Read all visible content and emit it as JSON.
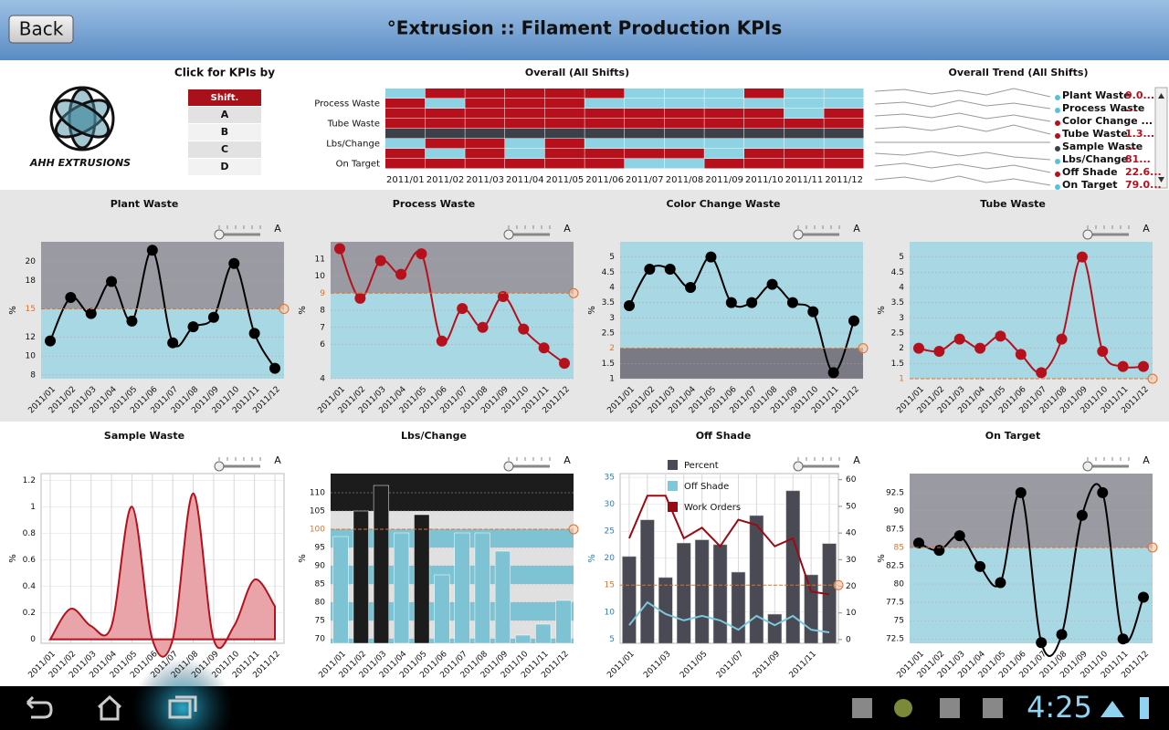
{
  "header": {
    "back": "Back",
    "title": "°Extrusion :: Filament Production KPIs"
  },
  "logo": "AHH EXTRUSIONS",
  "selector": {
    "title": "Click for KPIs by",
    "header": "Shift.",
    "items": [
      "A",
      "B",
      "C",
      "D"
    ]
  },
  "overview": {
    "title": "Overall (All Shifts)",
    "rows": [
      null,
      "Process Waste",
      null,
      "Tube Waste",
      null,
      "Lbs/Change",
      null,
      "On Target"
    ],
    "columns": [
      "2011/01",
      "2011/02",
      "2011/03",
      "2011/04",
      "2011/05",
      "2011/06",
      "2011/07",
      "2011/08",
      "2011/09",
      "2011/10",
      "2011/11",
      "2011/12"
    ],
    "cells": [
      [
        "#8dd3e3",
        "#b5101c",
        "#b5101c",
        "#b5101c",
        "#b5101c",
        "#b5101c",
        "#8dd3e3",
        "#8dd3e3",
        "#8dd3e3",
        "#b5101c",
        "#8dd3e3",
        "#8dd3e3"
      ],
      [
        "#b5101c",
        "#8dd3e3",
        "#b5101c",
        "#b5101c",
        "#b5101c",
        "#8dd3e3",
        "#8dd3e3",
        "#8dd3e3",
        "#8dd3e3",
        "#8dd3e3",
        "#8dd3e3",
        "#8dd3e3"
      ],
      [
        "#b5101c",
        "#b5101c",
        "#b5101c",
        "#b5101c",
        "#b5101c",
        "#b5101c",
        "#b5101c",
        "#b5101c",
        "#b5101c",
        "#b5101c",
        "#8dd3e3",
        "#b5101c"
      ],
      [
        "#b5101c",
        "#b5101c",
        "#b5101c",
        "#b5101c",
        "#b5101c",
        "#b5101c",
        "#b5101c",
        "#b5101c",
        "#b5101c",
        "#b5101c",
        "#b5101c",
        "#b5101c"
      ],
      [
        "#3c4049",
        "#3c4049",
        "#3c4049",
        "#3c4049",
        "#3c4049",
        "#3c4049",
        "#3c4049",
        "#3c4049",
        "#3c4049",
        "#3c4049",
        "#3c4049",
        "#3c4049"
      ],
      [
        "#8dd3e3",
        "#b5101c",
        "#b5101c",
        "#8dd3e3",
        "#b5101c",
        "#8dd3e3",
        "#8dd3e3",
        "#8dd3e3",
        "#8dd3e3",
        "#8dd3e3",
        "#8dd3e3",
        "#8dd3e3"
      ],
      [
        "#b5101c",
        "#8dd3e3",
        "#b5101c",
        "#8dd3e3",
        "#b5101c",
        "#b5101c",
        "#b5101c",
        "#b5101c",
        "#8dd3e3",
        "#b5101c",
        "#b5101c",
        "#b5101c"
      ],
      [
        "#b5101c",
        "#b5101c",
        "#b5101c",
        "#b5101c",
        "#b5101c",
        "#b5101c",
        "#8dd3e3",
        "#8dd3e3",
        "#b5101c",
        "#b5101c",
        "#b5101c",
        "#b5101c"
      ]
    ]
  },
  "trend": {
    "title": "Overall Trend (All Shifts)",
    "items": [
      {
        "name": "Plant Waste",
        "value": "9.0...",
        "color": "#5bc0de"
      },
      {
        "name": "Process Waste",
        "value": "...",
        "color": "#5bc0de"
      },
      {
        "name": "Color Change ...",
        "value": "",
        "color": "#b5101c"
      },
      {
        "name": "Tube Waste",
        "value": "1.3...",
        "color": "#b5101c"
      },
      {
        "name": "Sample Waste",
        "value": "...",
        "color": "#3c4049"
      },
      {
        "name": "Lbs/Change",
        "value": "81...",
        "color": "#5bc0de"
      },
      {
        "name": "Off Shade",
        "value": "22.6...",
        "color": "#b5101c"
      },
      {
        "name": "On Target",
        "value": "79.0...",
        "color": "#5bc0de"
      }
    ]
  },
  "charts": [
    {
      "type": "line",
      "title": "Plant Waste",
      "y_label": "%",
      "slider_label": "A",
      "categories": [
        "2011/01",
        "2011/02",
        "2011/03",
        "2011/04",
        "2011/05",
        "2011/06",
        "2011/07",
        "2011/08",
        "2011/09",
        "2011/10",
        "2011/11",
        "2011/12"
      ],
      "values": [
        11.6,
        16.2,
        14.5,
        17.9,
        13.7,
        21.2,
        11.4,
        13.1,
        14.1,
        19.8,
        12.4,
        8.7
      ],
      "color": "#000000",
      "ylim": [
        7.6,
        22.1
      ],
      "yticks": [
        8,
        10,
        12,
        15,
        18,
        20
      ],
      "threshold": 15,
      "above_color": "#9a9aa2",
      "below_color": "#a8d8e4"
    },
    {
      "type": "line",
      "title": "Process Waste",
      "y_label": "%",
      "slider_label": "A",
      "categories": [
        "2011/01",
        "2011/02",
        "2011/03",
        "2011/04",
        "2011/05",
        "2011/06",
        "2011/07",
        "2011/08",
        "2011/09",
        "2011/10",
        "2011/11",
        "2011/12"
      ],
      "values": [
        11.6,
        8.7,
        10.9,
        10.1,
        11.3,
        6.2,
        8.1,
        7.0,
        8.8,
        6.9,
        5.8,
        4.9
      ],
      "color": "#b5101c",
      "ylim": [
        4,
        12
      ],
      "yticks": [
        4,
        6,
        7,
        8,
        9,
        10,
        11
      ],
      "threshold": 9,
      "above_color": "#9a9aa2",
      "below_color": "#a8d8e4"
    },
    {
      "type": "line",
      "title": "Color Change Waste",
      "y_label": "%",
      "slider_label": "A",
      "categories": [
        "2011/01",
        "2011/02",
        "2011/03",
        "2011/04",
        "2011/05",
        "2011/06",
        "2011/07",
        "2011/08",
        "2011/09",
        "2011/10",
        "2011/11",
        "2011/12"
      ],
      "values": [
        3.4,
        4.6,
        4.6,
        4.0,
        5.0,
        3.5,
        3.5,
        4.1,
        3.5,
        3.2,
        1.2,
        2.9
      ],
      "color": "#000000",
      "ylim": [
        1,
        5.5
      ],
      "yticks": [
        1,
        1.5,
        2,
        2.5,
        3,
        3.5,
        4,
        4.5,
        5
      ],
      "threshold": 2,
      "above_color": "#a8d8e4",
      "below_color": "#7a7a85"
    },
    {
      "type": "line",
      "title": "Tube Waste",
      "y_label": "%",
      "slider_label": "A",
      "categories": [
        "2011/01",
        "2011/02",
        "2011/03",
        "2011/04",
        "2011/05",
        "2011/06",
        "2011/07",
        "2011/08",
        "2011/09",
        "2011/10",
        "2011/11",
        "2011/12"
      ],
      "values": [
        2.0,
        1.9,
        2.3,
        2.0,
        2.4,
        1.8,
        1.2,
        2.3,
        5.0,
        1.9,
        1.4,
        1.4
      ],
      "color": "#b5101c",
      "ylim": [
        1,
        5.5
      ],
      "yticks": [
        1,
        1.5,
        2,
        2.5,
        3,
        3.5,
        4,
        4.5,
        5
      ],
      "threshold": 1,
      "above_color": "#a8d8e4",
      "below_color": "#7a7a85"
    },
    {
      "type": "area",
      "title": "Sample Waste",
      "y_label": "%",
      "slider_label": "A",
      "categories": [
        "2011/01",
        "2011/02",
        "2011/03",
        "2011/04",
        "2011/05",
        "2011/06",
        "2011/07",
        "2011/08",
        "2011/09",
        "2011/10",
        "2011/11",
        "2011/12"
      ],
      "values": [
        0,
        0.23,
        0.1,
        0.1,
        1.0,
        0,
        0,
        1.1,
        0,
        0.1,
        0.45,
        0.25
      ],
      "color": "#b5101c",
      "fill": "#e8a4a8",
      "ylim": [
        -0.03,
        1.25
      ],
      "yticks": [
        0,
        0.2,
        0.4,
        0.6,
        0.8,
        1,
        1.2
      ],
      "grid": true
    },
    {
      "type": "bar",
      "title": "Lbs/Change",
      "y_label": "%",
      "slider_label": "A",
      "categories": [
        "2011/01",
        "2011/02",
        "2011/03",
        "2011/04",
        "2011/05",
        "2011/06",
        "2011/07",
        "2011/08",
        "2011/09",
        "2011/10",
        "2011/11",
        "2011/12"
      ],
      "values": [
        98,
        105,
        112,
        99,
        104,
        87.5,
        99,
        99,
        94,
        71,
        74,
        80.5
      ],
      "above_color": "#1c1c1c",
      "below_color": "#7ec3d3",
      "ylim": [
        68.75,
        115.25
      ],
      "yticks": [
        70,
        75,
        80,
        85,
        90,
        95,
        100,
        105,
        110
      ],
      "threshold": 100,
      "bands": true
    },
    {
      "type": "combo",
      "title": "Off Shade",
      "y_label": "%",
      "slider_label": "A",
      "categories": [
        "2011/01",
        null,
        "2011/03",
        null,
        "2011/05",
        null,
        "2011/07",
        null,
        "2011/09",
        null,
        "2011/11",
        null
      ],
      "series": [
        {
          "name": "Percent",
          "type": "bar",
          "color": "#4a4a55",
          "values": [
            20.3,
            27.1,
            16.4,
            22.8,
            23.4,
            22.5,
            17.4,
            27.9,
            9.6,
            32.5,
            16.9,
            22.7
          ]
        },
        {
          "name": "Off Shade",
          "type": "line",
          "axis": "y2",
          "color": "#7cc8dc",
          "values": [
            5.4,
            14,
            9.6,
            7.2,
            8.9,
            7.2,
            3.7,
            8.9,
            5.4,
            8.9,
            3.7,
            2.7
          ]
        },
        {
          "name": "Work Orders",
          "type": "line",
          "axis": "y2",
          "color": "#9a0a14",
          "values": [
            38,
            54,
            54,
            38,
            42,
            35,
            45,
            43,
            35,
            38,
            18,
            17
          ]
        }
      ],
      "ylim": [
        4.2,
        35.7
      ],
      "yticks": [
        5,
        10,
        15,
        20,
        25,
        30,
        35
      ],
      "y2lim": [
        -1.4,
        62.3
      ],
      "y2ticks": [
        0,
        10,
        20,
        30,
        40,
        50,
        60
      ],
      "threshold": 15,
      "axis_color": "#2a7fc0",
      "grid": true
    },
    {
      "type": "line",
      "title": "On Target",
      "y_label": "%",
      "slider_label": "A",
      "categories": [
        "2011/01",
        "2011/02",
        "2011/03",
        "2011/04",
        "2011/05",
        "2011/06",
        "2011/07",
        "2011/08",
        "2011/09",
        "2011/10",
        "2011/11",
        "2011/12"
      ],
      "values": [
        85.6,
        84.6,
        86.6,
        82.4,
        80.2,
        92.5,
        72,
        73.1,
        89.4,
        92.5,
        72.5,
        78.2
      ],
      "color": "#000000",
      "ylim": [
        71.9,
        95.1
      ],
      "yticks": [
        72.5,
        75,
        77.5,
        80,
        82.5,
        85,
        87.5,
        90,
        92.5
      ],
      "threshold": 85,
      "above_color": "#9a9aa2",
      "below_color": "#a8d8e4"
    }
  ],
  "status_bar": {
    "time": "4:25"
  }
}
